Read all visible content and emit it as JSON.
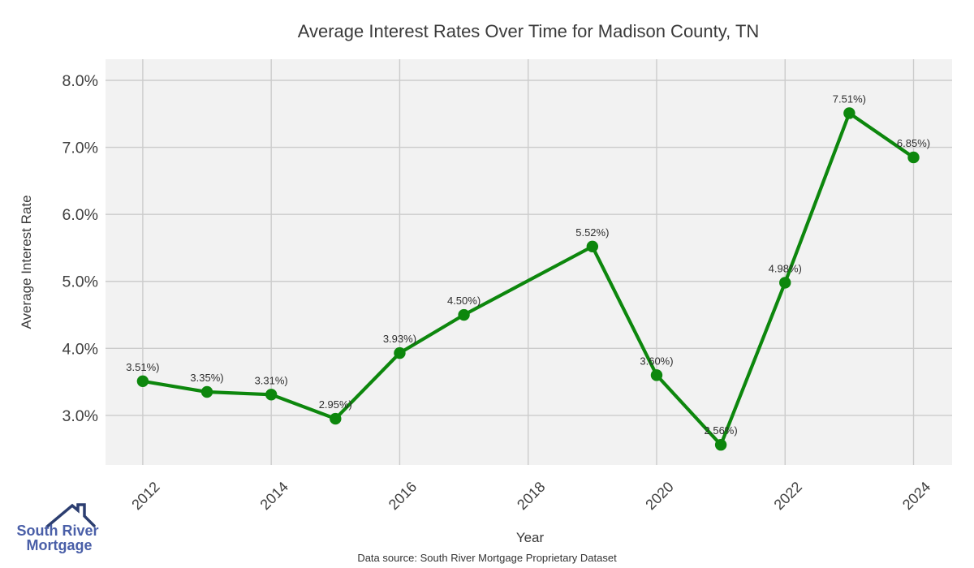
{
  "page": {
    "background": "#ffffff"
  },
  "chart_data": {
    "type": "line",
    "title": "Average Interest Rates Over Time for Madison County, TN",
    "xlabel": "Year",
    "ylabel": "Average Interest Rate",
    "x": [
      2012,
      2013,
      2014,
      2015,
      2016,
      2017,
      2019,
      2020,
      2021,
      2022,
      2023,
      2024
    ],
    "values": [
      3.51,
      3.35,
      3.31,
      2.95,
      3.93,
      4.5,
      5.52,
      3.6,
      2.56,
      4.98,
      7.51,
      6.85
    ],
    "point_labels": [
      "3.51%)",
      "3.35%)",
      "3.31%)",
      "2.95%)",
      "3.93%)",
      "4.50%)",
      "5.52%)",
      "3.60%)",
      "2.56%)",
      "4.98%)",
      "7.51%)",
      "6.85%)"
    ],
    "x_ticks": [
      2012,
      2014,
      2016,
      2018,
      2020,
      2022,
      2024
    ],
    "x_tick_labels": [
      "2012",
      "2014",
      "2016",
      "2018",
      "2020",
      "2022",
      "2024"
    ],
    "y_ticks": [
      3,
      4,
      5,
      6,
      7,
      8
    ],
    "y_tick_labels": [
      "3.0%",
      "4.0%",
      "5.0%",
      "6.0%",
      "7.0%",
      "8.0%"
    ],
    "xlim": [
      2011.42,
      2024.6
    ],
    "ylim": [
      2.26,
      8.315
    ],
    "grid": true,
    "legend": "none",
    "line_color": "#0d870d",
    "marker_color": "#0d870d",
    "plot_bg_color": "#f2f2f2",
    "grid_color": "#cccccc"
  },
  "logo": {
    "icon": "house-roof-icon",
    "line1": "South River",
    "line2": "Mortgage",
    "text_color": "#4a5fa8",
    "icon_color": "#2c3e70"
  },
  "footer": {
    "data_source": "Data source: South River Mortgage Proprietary Dataset"
  }
}
